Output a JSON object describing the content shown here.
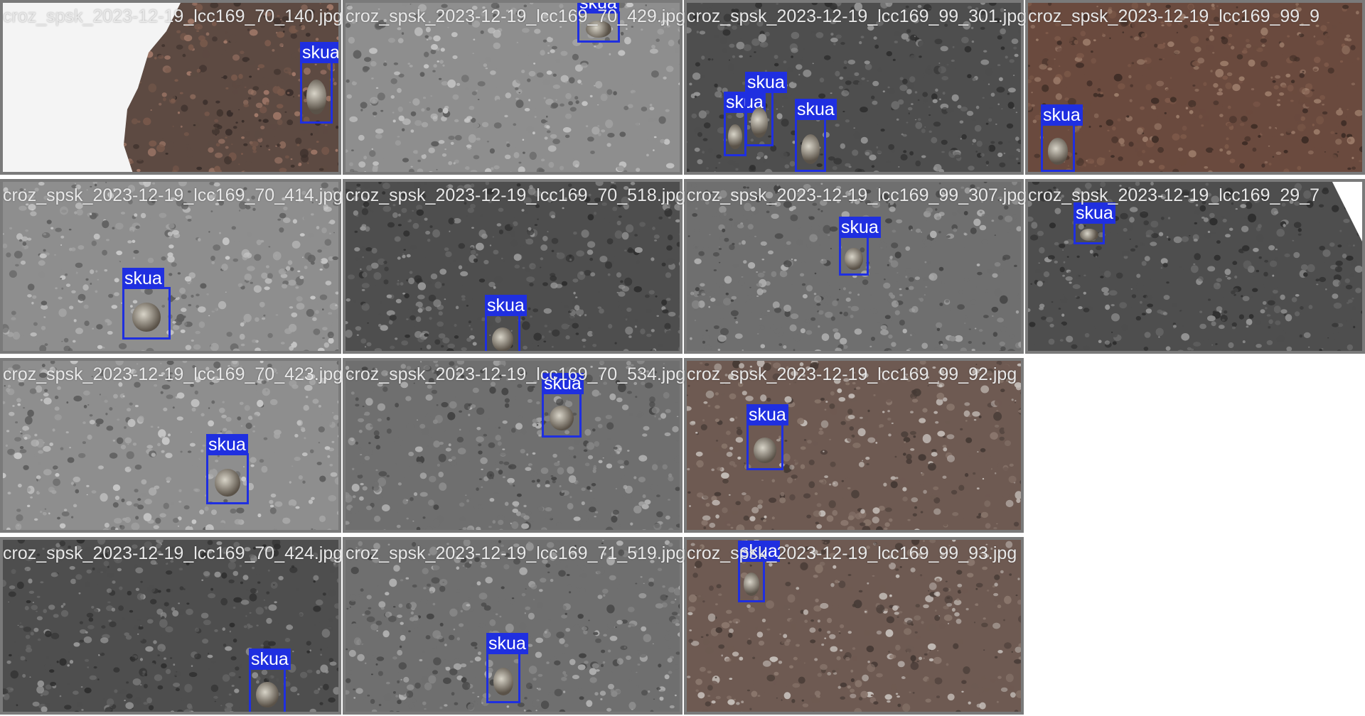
{
  "mosaic": {
    "cell_count_columns": 4,
    "cell_count_rows": 4,
    "box_color": "#1f2fe0",
    "tiles": [
      {
        "filename": "croz_spsk_2023-12-19_lcc169_70_140.jpg",
        "palette": "brown_snow",
        "boxes": [
          {
            "label": "skua"
          }
        ]
      },
      {
        "filename": "croz_spsk_2023-12-19_lcc169_70_429.jpg",
        "palette": "gray_light",
        "boxes": [
          {
            "label": "skua"
          }
        ]
      },
      {
        "filename": "croz_spsk_2023-12-19_lcc169_99_301.jpg",
        "palette": "gray_dark",
        "boxes": [
          {
            "label": "skua"
          },
          {
            "label": "skua"
          },
          {
            "label": "skua"
          }
        ]
      },
      {
        "filename": "croz_spsk_2023-12-19_lcc169_99_9",
        "palette": "brown",
        "boxes": [
          {
            "label": "skua"
          }
        ]
      },
      {
        "filename": "croz_spsk_2023-12-19_lcc169_70_414.jpg",
        "palette": "gray_light",
        "boxes": [
          {
            "label": "skua"
          }
        ]
      },
      {
        "filename": "croz_spsk_2023-12-19_lcc169_70_518.jpg",
        "palette": "gray_dark",
        "boxes": [
          {
            "label": "skua"
          }
        ]
      },
      {
        "filename": "croz_spsk_2023-12-19_lcc169_99_307.jpg",
        "palette": "gray_mid",
        "boxes": [
          {
            "label": "skua"
          }
        ]
      },
      {
        "filename": "croz_spsk_2023-12-19_lcc169_29_7",
        "palette": "gray_dark",
        "boxes": [
          {
            "label": "skua"
          }
        ]
      },
      {
        "filename": "croz_spsk_2023-12-19_lcc169_70_423.jpg",
        "palette": "gray_light",
        "boxes": [
          {
            "label": "skua"
          }
        ]
      },
      {
        "filename": "croz_spsk_2023-12-19_lcc169_70_534.jpg",
        "palette": "gray_mid",
        "boxes": [
          {
            "label": "skua"
          }
        ]
      },
      {
        "filename": "croz_spsk_2023-12-19_lcc169_99_92.jpg",
        "palette": "brown_light",
        "boxes": [
          {
            "label": "skua"
          }
        ]
      },
      null,
      {
        "filename": "croz_spsk_2023-12-19_lcc169_70_424.jpg",
        "palette": "gray_dark",
        "boxes": [
          {
            "label": "skua"
          }
        ]
      },
      {
        "filename": "croz_spsk_2023-12-19_lcc169_71_519.jpg",
        "palette": "gray_mid",
        "boxes": [
          {
            "label": "skua"
          }
        ]
      },
      {
        "filename": "croz_spsk_2023-12-19_lcc169_99_93.jpg",
        "palette": "brown_light",
        "boxes": [
          {
            "label": "skua"
          }
        ]
      },
      null
    ]
  }
}
